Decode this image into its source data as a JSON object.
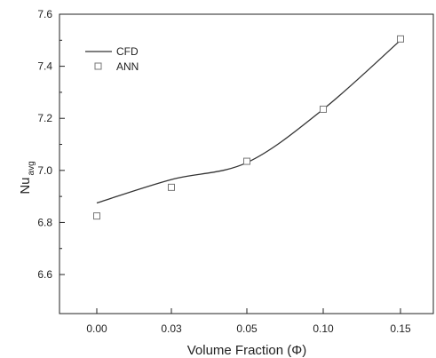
{
  "chart_data": {
    "type": "line",
    "xlabel": "Volume Fraction (Φ)",
    "ylabel_main": "Nu",
    "ylabel_sub": "avg",
    "x_ticks": [
      "0.00",
      "0.03",
      "0.05",
      "0.10",
      "0.15"
    ],
    "y_ticks": [
      "6.6",
      "6.8",
      "7.0",
      "7.2",
      "7.4",
      "7.6"
    ],
    "ylim": [
      6.45,
      7.6
    ],
    "legend_position": "top-left",
    "grid": false,
    "series": [
      {
        "name": "CFD",
        "style": "line",
        "color": "#333333",
        "points": [
          {
            "x": "0.00",
            "y": 6.875
          },
          {
            "x": "0.03",
            "y": 6.965
          },
          {
            "x": "0.05",
            "y": 7.03
          },
          {
            "x": "0.10",
            "y": 7.235
          },
          {
            "x": "0.15",
            "y": 7.5
          }
        ]
      },
      {
        "name": "ANN",
        "style": "square-marker",
        "color": "#777777",
        "points": [
          {
            "x": "0.00",
            "y": 6.825
          },
          {
            "x": "0.03",
            "y": 6.935
          },
          {
            "x": "0.05",
            "y": 7.035
          },
          {
            "x": "0.10",
            "y": 7.235
          },
          {
            "x": "0.15",
            "y": 7.505
          }
        ]
      }
    ]
  }
}
